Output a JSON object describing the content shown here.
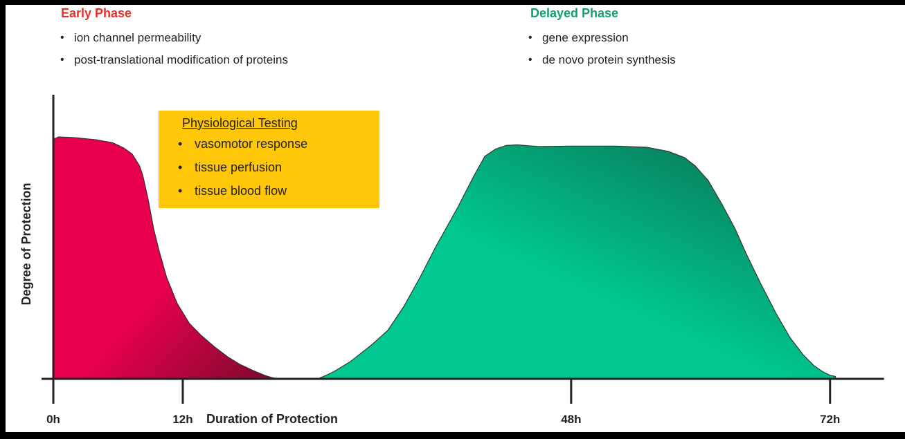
{
  "early_phase": {
    "title": "Early Phase",
    "items": [
      "ion channel permeability",
      "post-translational modification of proteins"
    ]
  },
  "delayed_phase": {
    "title": "Delayed Phase",
    "items": [
      "gene expression",
      "de novo protein synthesis"
    ]
  },
  "physiological_testing": {
    "title": "Physiological Testing",
    "items": [
      "vasomotor response",
      "tissue perfusion",
      "tissue blood flow"
    ]
  },
  "colors": {
    "early": "#e8004d",
    "early_dark": "#7a0a2c",
    "delayed": "#00c890",
    "delayed_dark": "#0a6a4e",
    "testing_box": "#ffc708",
    "early_title": "#e8302a",
    "delayed_title": "#10a070"
  },
  "chart_data": {
    "type": "area",
    "title": "",
    "xlabel": "Duration of Protection",
    "ylabel": "Degree of Protection",
    "x_ticks": [
      {
        "value": 0,
        "label": "0h"
      },
      {
        "value": 12,
        "label": "12h"
      },
      {
        "value": 48,
        "label": "48h"
      },
      {
        "value": 72,
        "label": "72h"
      }
    ],
    "xlim": [
      0,
      77
    ],
    "ylim": [
      0,
      100
    ],
    "grid": false,
    "series": [
      {
        "name": "Early Phase",
        "points": [
          [
            0,
            99
          ],
          [
            0.5,
            100
          ],
          [
            2,
            99.7
          ],
          [
            4,
            98.8
          ],
          [
            5.5,
            97.6
          ],
          [
            6.5,
            95.5
          ],
          [
            7.3,
            93
          ],
          [
            8,
            88
          ],
          [
            8.3,
            84
          ],
          [
            8.8,
            74
          ],
          [
            9.3,
            62
          ],
          [
            9.8,
            53
          ],
          [
            10.5,
            42
          ],
          [
            11.5,
            31
          ],
          [
            12.6,
            23
          ],
          [
            13.7,
            18
          ],
          [
            15,
            13
          ],
          [
            16.2,
            9
          ],
          [
            17.3,
            6
          ],
          [
            18.5,
            3.5
          ],
          [
            19.7,
            1.3
          ],
          [
            20.3,
            0.5
          ],
          [
            21,
            0
          ]
        ]
      },
      {
        "name": "Delayed Phase",
        "points": [
          [
            24.5,
            0
          ],
          [
            25.3,
            1.5
          ],
          [
            26,
            3
          ],
          [
            27.5,
            7
          ],
          [
            29.5,
            14
          ],
          [
            31,
            20
          ],
          [
            32.5,
            30
          ],
          [
            34,
            42
          ],
          [
            35.5,
            55
          ],
          [
            37.5,
            71
          ],
          [
            39,
            84
          ],
          [
            40,
            92
          ],
          [
            41,
            95
          ],
          [
            42,
            96.5
          ],
          [
            43,
            96.7
          ],
          [
            45,
            96
          ],
          [
            48,
            96.2
          ],
          [
            52,
            96.2
          ],
          [
            55,
            95.7
          ],
          [
            57,
            94
          ],
          [
            58.5,
            91.5
          ],
          [
            59.5,
            88
          ],
          [
            60.7,
            82
          ],
          [
            62,
            72
          ],
          [
            63.2,
            62
          ],
          [
            64.2,
            52
          ],
          [
            65.5,
            40
          ],
          [
            67,
            27
          ],
          [
            68.3,
            17
          ],
          [
            69.5,
            10
          ],
          [
            70.5,
            5.5
          ],
          [
            71.3,
            3
          ],
          [
            72,
            1.5
          ],
          [
            72.5,
            1
          ]
        ]
      }
    ]
  }
}
